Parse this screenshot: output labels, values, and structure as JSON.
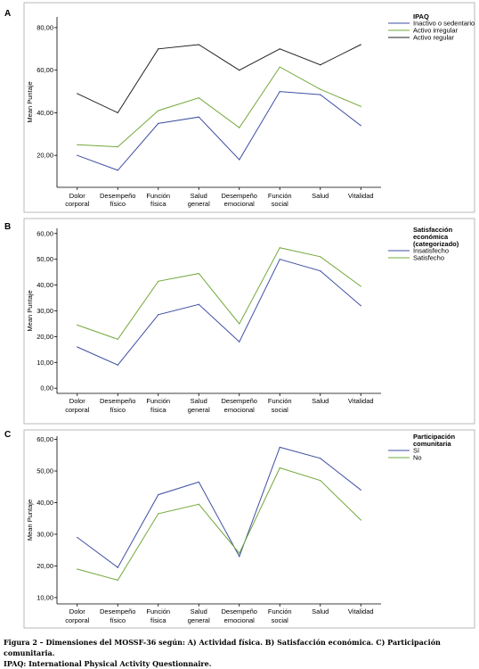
{
  "caption": {
    "line1": "Figura 2 – Dimensiones del MOSSF-36 según: A) Actividad física. B) Satisfacción económica. C) Participación comunitaria.",
    "line2": "IPAQ: International Physical Activity Questionnaire."
  },
  "chart_data": [
    {
      "type": "line",
      "panel_label": "A",
      "ylabel": "Mean Puntaje",
      "yticks": [
        "20,00",
        "40,00",
        "60,00",
        "80,00"
      ],
      "ytick_values": [
        20,
        40,
        60,
        80
      ],
      "ylim": [
        5,
        85
      ],
      "categories": [
        [
          "Dolor",
          "corporal"
        ],
        [
          "Desempeño",
          "físico"
        ],
        [
          "Función",
          "física"
        ],
        [
          "Salud",
          "general"
        ],
        [
          "Desempeño",
          "emocional"
        ],
        [
          "Función",
          "social"
        ],
        [
          "Salud",
          ""
        ],
        [
          "Vitalidad",
          ""
        ]
      ],
      "legend": {
        "title": [
          "IPAQ"
        ],
        "placement": "right"
      },
      "series": [
        {
          "name": "Inactivo o sedentario",
          "color": "#3f4fa3",
          "values": [
            20,
            13,
            35,
            38,
            18,
            50,
            48.5,
            34
          ]
        },
        {
          "name": "Activo irregular",
          "color": "#72a83a",
          "values": [
            25,
            24,
            41,
            47,
            33,
            61.5,
            51,
            43
          ]
        },
        {
          "name": "Activo regular",
          "color": "#222222",
          "values": [
            49,
            40,
            70,
            72,
            60,
            70,
            62.5,
            72
          ]
        }
      ]
    },
    {
      "type": "line",
      "panel_label": "B",
      "ylabel": "Mean Puntaje",
      "yticks": [
        "0,00",
        "10,00",
        "20,00",
        "30,00",
        "40,00",
        "50,00",
        "60,00"
      ],
      "ytick_values": [
        0,
        10,
        20,
        30,
        40,
        50,
        60
      ],
      "ylim": [
        -2,
        62
      ],
      "categories": [
        [
          "Dolor",
          "corporal"
        ],
        [
          "Desempeño",
          "físico"
        ],
        [
          "Función",
          "física"
        ],
        [
          "Salud",
          "general"
        ],
        [
          "Desempeño",
          "emocional"
        ],
        [
          "Función",
          "social"
        ],
        [
          "Salud",
          ""
        ],
        [
          "Vitalidad",
          ""
        ]
      ],
      "legend": {
        "title": [
          "Satisfacción",
          "económica",
          "(categorizado)"
        ],
        "placement": "right"
      },
      "series": [
        {
          "name": "Insatisfecho",
          "color": "#3f4fa3",
          "values": [
            16,
            9,
            28.5,
            32.5,
            18,
            50,
            45.5,
            32
          ]
        },
        {
          "name": "Satisfecho",
          "color": "#72a83a",
          "values": [
            24.5,
            19,
            41.5,
            44.5,
            25,
            54.5,
            51,
            39.5
          ]
        }
      ]
    },
    {
      "type": "line",
      "panel_label": "C",
      "ylabel": "Mean Puntaje",
      "yticks": [
        "10,00",
        "20,00",
        "30,00",
        "40,00",
        "50,00",
        "60,00"
      ],
      "ytick_values": [
        10,
        20,
        30,
        40,
        50,
        60
      ],
      "ylim": [
        8,
        61
      ],
      "categories": [
        [
          "Dolor",
          "corporal"
        ],
        [
          "Desempeño",
          "físico"
        ],
        [
          "Función",
          "física"
        ],
        [
          "Salud",
          "general"
        ],
        [
          "Desempeño",
          "emocional"
        ],
        [
          "Función",
          "social"
        ],
        [
          "Salud",
          ""
        ],
        [
          "Vitalidad",
          ""
        ]
      ],
      "legend": {
        "title": [
          "Participación",
          "comunitaria"
        ],
        "placement": "right"
      },
      "series": [
        {
          "name": "Sí",
          "color": "#3f4fa3",
          "values": [
            29,
            19.5,
            42.5,
            46.5,
            23,
            57.5,
            54,
            44
          ]
        },
        {
          "name": "No",
          "color": "#72a83a",
          "values": [
            19,
            15.5,
            36.5,
            39.5,
            24,
            51,
            47,
            34.5
          ]
        }
      ]
    }
  ]
}
